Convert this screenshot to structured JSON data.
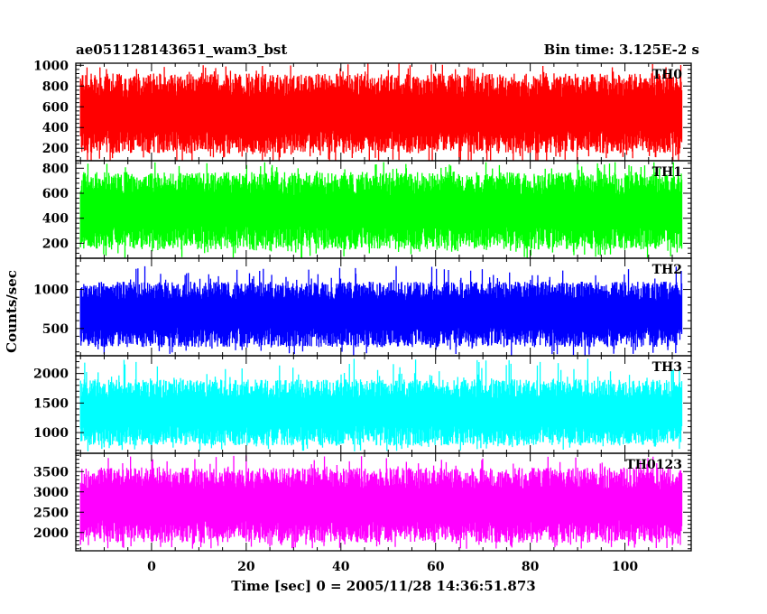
{
  "chart_data": {
    "type": "line",
    "title": "ae051128143651_wam3_bst",
    "subtitle": "Bin time: 3.125E-2 s",
    "xlabel": "Time [sec] 0 = 2005/11/28 14:36:51.873",
    "ylabel": "Counts/sec",
    "xlim": [
      -16,
      114
    ],
    "x_range": [
      -15,
      112
    ],
    "x_ticks": [
      0,
      20,
      40,
      60,
      80,
      100
    ],
    "x_tick_labels": [
      "0",
      "20",
      "40",
      "60",
      "80",
      "100"
    ],
    "panels": [
      {
        "name": "TH0",
        "color": "#ff0000",
        "ylim": [
          80,
          1020
        ],
        "y_ticks": [
          200,
          400,
          600,
          800,
          1000
        ],
        "y_tick_labels": [
          "200",
          "400",
          "600",
          "800",
          "1000"
        ],
        "band": [
          150,
          920
        ],
        "spikes": [
          40,
          1020
        ]
      },
      {
        "name": "TH1",
        "color": "#00ff00",
        "ylim": [
          80,
          860
        ],
        "y_ticks": [
          200,
          400,
          600,
          800
        ],
        "y_tick_labels": [
          "200",
          "400",
          "600",
          "800"
        ],
        "band": [
          150,
          770
        ],
        "spikes": [
          80,
          850
        ]
      },
      {
        "name": "TH2",
        "color": "#0000ff",
        "ylim": [
          150,
          1400
        ],
        "y_ticks": [
          500,
          1000
        ],
        "y_tick_labels": [
          "500",
          "1000"
        ],
        "band": [
          260,
          1100
        ],
        "spikes": [
          150,
          1300
        ]
      },
      {
        "name": "TH3",
        "color": "#00ffff",
        "ylim": [
          650,
          2300
        ],
        "y_ticks": [
          1000,
          1500,
          2000
        ],
        "y_tick_labels": [
          "1000",
          "1500",
          "2000"
        ],
        "band": [
          780,
          1900
        ],
        "spikes": [
          680,
          2250
        ]
      },
      {
        "name": "TH0123",
        "color": "#ff00ff",
        "ylim": [
          1550,
          3950
        ],
        "y_ticks": [
          2000,
          2500,
          3000,
          3500
        ],
        "y_tick_labels": [
          "2000",
          "2500",
          "3000",
          "3500"
        ],
        "band": [
          1750,
          3600
        ],
        "spikes": [
          1600,
          3900
        ]
      }
    ]
  }
}
